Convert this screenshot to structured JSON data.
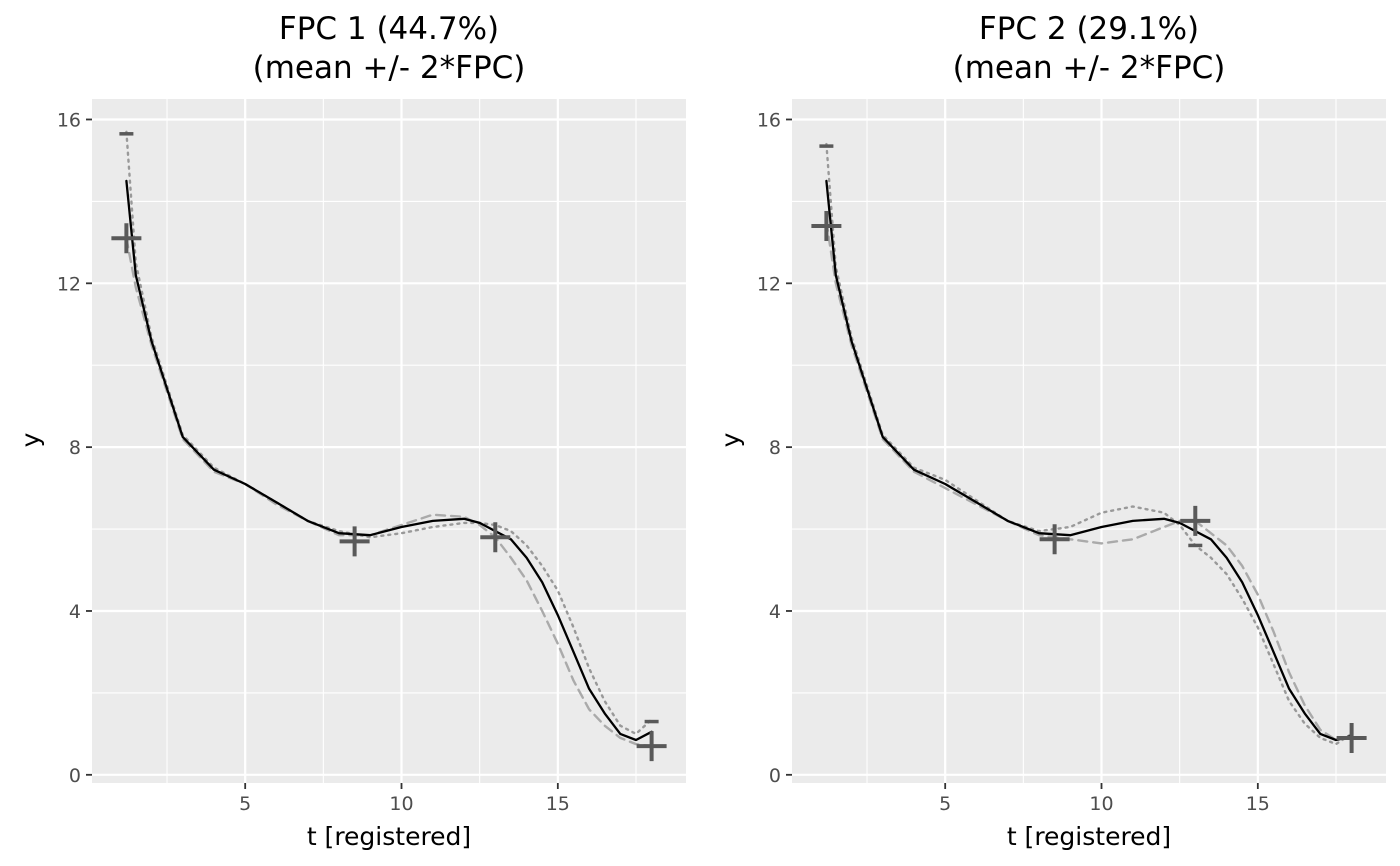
{
  "chart_data": [
    {
      "type": "line",
      "title": "FPC 1 (44.7%)",
      "subtitle": "(mean +/- 2*FPC)",
      "xlabel": "t [registered]",
      "ylabel": "y",
      "xlim": [
        0.1,
        19.1
      ],
      "ylim": [
        -0.2,
        16.5
      ],
      "xticks": [
        5,
        10,
        15
      ],
      "yticks": [
        0,
        4,
        8,
        12,
        16
      ],
      "grid": true,
      "legend": "none",
      "series": [
        {
          "role": "mean",
          "color": "#000000",
          "dash": "solid",
          "x": [
            1.2,
            1.5,
            2.0,
            3.0,
            4.0,
            5.0,
            6.0,
            7.0,
            8.0,
            9.0,
            10.0,
            11.0,
            12.0,
            12.5,
            13.0,
            13.5,
            14.0,
            14.5,
            15.0,
            15.5,
            16.0,
            16.5,
            17.0,
            17.5,
            18.0
          ],
          "y": [
            14.5,
            12.2,
            10.6,
            8.25,
            7.45,
            7.1,
            6.65,
            6.2,
            5.9,
            5.85,
            6.05,
            6.2,
            6.25,
            6.15,
            5.95,
            5.75,
            5.3,
            4.7,
            3.9,
            3.0,
            2.1,
            1.5,
            1.0,
            0.85,
            1.05
          ]
        },
        {
          "role": "mean - 2*FPC",
          "color": "#aaaaaa",
          "dash": "dashed",
          "x": [
            1.2,
            1.5,
            2.0,
            3.0,
            4.0,
            5.0,
            6.0,
            7.0,
            8.0,
            9.0,
            10.0,
            11.0,
            12.0,
            12.5,
            13.0,
            13.5,
            14.0,
            14.5,
            15.0,
            15.5,
            16.0,
            16.5,
            17.0,
            17.5,
            18.0
          ],
          "y": [
            13.1,
            11.9,
            10.5,
            8.2,
            7.4,
            7.1,
            6.6,
            6.2,
            5.85,
            5.85,
            6.1,
            6.35,
            6.3,
            6.1,
            5.8,
            5.3,
            4.75,
            4.0,
            3.2,
            2.3,
            1.6,
            1.2,
            0.9,
            0.75,
            0.7
          ]
        },
        {
          "role": "mean + 2*FPC",
          "color": "#999999",
          "dash": "dotted",
          "x": [
            1.2,
            1.5,
            2.0,
            3.0,
            4.0,
            5.0,
            6.0,
            7.0,
            8.0,
            9.0,
            10.0,
            11.0,
            12.0,
            12.5,
            13.0,
            13.5,
            14.0,
            14.5,
            15.0,
            15.5,
            16.0,
            16.5,
            17.0,
            17.5,
            18.0
          ],
          "y": [
            15.7,
            12.5,
            10.7,
            8.3,
            7.5,
            7.1,
            6.65,
            6.2,
            5.95,
            5.8,
            5.9,
            6.05,
            6.15,
            6.15,
            6.1,
            5.95,
            5.6,
            5.1,
            4.5,
            3.6,
            2.6,
            1.8,
            1.2,
            1.0,
            1.35
          ]
        }
      ],
      "markers": {
        "color": "#595959",
        "plus": [
          [
            1.2,
            13.1
          ],
          [
            8.5,
            5.7
          ],
          [
            13.0,
            5.8
          ],
          [
            18.0,
            0.7
          ]
        ],
        "minus": [
          [
            1.2,
            15.65
          ],
          [
            18.0,
            1.3
          ]
        ]
      }
    },
    {
      "type": "line",
      "title": "FPC 2 (29.1%)",
      "subtitle": "(mean +/- 2*FPC)",
      "xlabel": "t [registered]",
      "ylabel": "y",
      "xlim": [
        0.1,
        19.1
      ],
      "ylim": [
        -0.2,
        16.5
      ],
      "xticks": [
        5,
        10,
        15
      ],
      "yticks": [
        0,
        4,
        8,
        12,
        16
      ],
      "grid": true,
      "legend": "none",
      "series": [
        {
          "role": "mean",
          "color": "#000000",
          "dash": "solid",
          "x": [
            1.2,
            1.5,
            2.0,
            3.0,
            4.0,
            5.0,
            6.0,
            7.0,
            8.0,
            9.0,
            10.0,
            11.0,
            12.0,
            12.5,
            13.0,
            13.5,
            14.0,
            14.5,
            15.0,
            15.5,
            16.0,
            16.5,
            17.0,
            17.5,
            18.0
          ],
          "y": [
            14.5,
            12.2,
            10.6,
            8.25,
            7.45,
            7.1,
            6.65,
            6.2,
            5.9,
            5.85,
            6.05,
            6.2,
            6.25,
            6.15,
            5.95,
            5.75,
            5.3,
            4.7,
            3.9,
            3.0,
            2.1,
            1.5,
            1.0,
            0.85,
            0.95
          ]
        },
        {
          "role": "mean - 2*FPC",
          "color": "#aaaaaa",
          "dash": "dashed",
          "x": [
            1.2,
            1.5,
            2.0,
            3.0,
            4.0,
            5.0,
            6.0,
            7.0,
            8.0,
            9.0,
            10.0,
            11.0,
            12.0,
            12.5,
            13.0,
            13.5,
            14.0,
            14.5,
            15.0,
            15.5,
            16.0,
            16.5,
            17.0,
            17.5,
            18.0
          ],
          "y": [
            13.5,
            12.0,
            10.5,
            8.2,
            7.4,
            7.0,
            6.6,
            6.2,
            5.85,
            5.75,
            5.65,
            5.75,
            6.05,
            6.2,
            6.2,
            5.9,
            5.6,
            5.1,
            4.4,
            3.5,
            2.5,
            1.7,
            1.1,
            0.85,
            0.9
          ]
        },
        {
          "role": "mean + 2*FPC",
          "color": "#999999",
          "dash": "dotted",
          "x": [
            1.2,
            1.5,
            2.0,
            3.0,
            4.0,
            5.0,
            6.0,
            7.0,
            8.0,
            9.0,
            10.0,
            11.0,
            12.0,
            12.5,
            13.0,
            13.5,
            14.0,
            14.5,
            15.0,
            15.5,
            16.0,
            16.5,
            17.0,
            17.5,
            18.0
          ],
          "y": [
            15.4,
            12.4,
            10.7,
            8.3,
            7.5,
            7.2,
            6.7,
            6.2,
            5.95,
            6.05,
            6.4,
            6.55,
            6.4,
            6.1,
            5.6,
            5.3,
            4.9,
            4.3,
            3.6,
            2.7,
            1.8,
            1.25,
            0.9,
            0.75,
            1.0
          ]
        }
      ],
      "markers": {
        "color": "#595959",
        "plus": [
          [
            1.2,
            13.4
          ],
          [
            8.5,
            5.75
          ],
          [
            13.0,
            6.2
          ],
          [
            18.0,
            0.9
          ]
        ],
        "minus": [
          [
            1.2,
            15.35
          ],
          [
            13.0,
            5.6
          ]
        ]
      }
    }
  ]
}
